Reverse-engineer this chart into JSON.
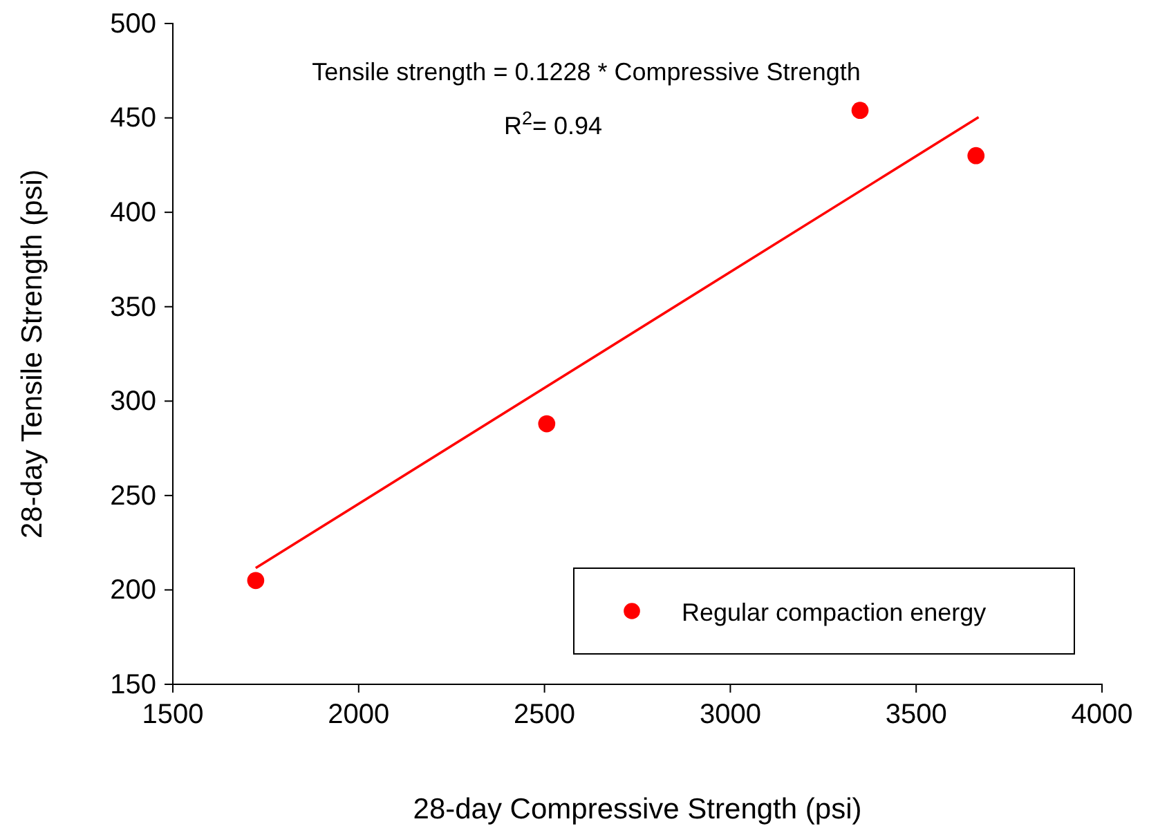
{
  "chart_data": {
    "type": "scatter",
    "xlabel": "28-day Compressive Strength (psi)",
    "ylabel": "28-day Tensile Strength (psi)",
    "xlim": [
      1500,
      4000
    ],
    "xticks": [
      1500,
      2000,
      2500,
      3000,
      3500,
      4000
    ],
    "ylim": [
      150,
      500
    ],
    "yticks": [
      150,
      200,
      250,
      300,
      350,
      400,
      450,
      500
    ],
    "grid": false,
    "legend": "bottom right",
    "marker": "circle",
    "annotations": [
      "Tensile strength = 0.1228 * Compressive Strength",
      "R$^{2}$= 0.94"
    ],
    "series": [
      {
        "name": "Regular compaction energy",
        "color": "#ff0000",
        "x": [
          1723,
          2506,
          3349,
          3661
        ],
        "values": [
          205,
          288,
          454,
          430
        ]
      },
      {
        "type": "line",
        "color": "#ff0000",
        "x": [
          1723,
          3668
        ],
        "values": [
          211.6,
          450.4
        ],
        "marker": "none",
        "line_style": "solid"
      }
    ]
  }
}
